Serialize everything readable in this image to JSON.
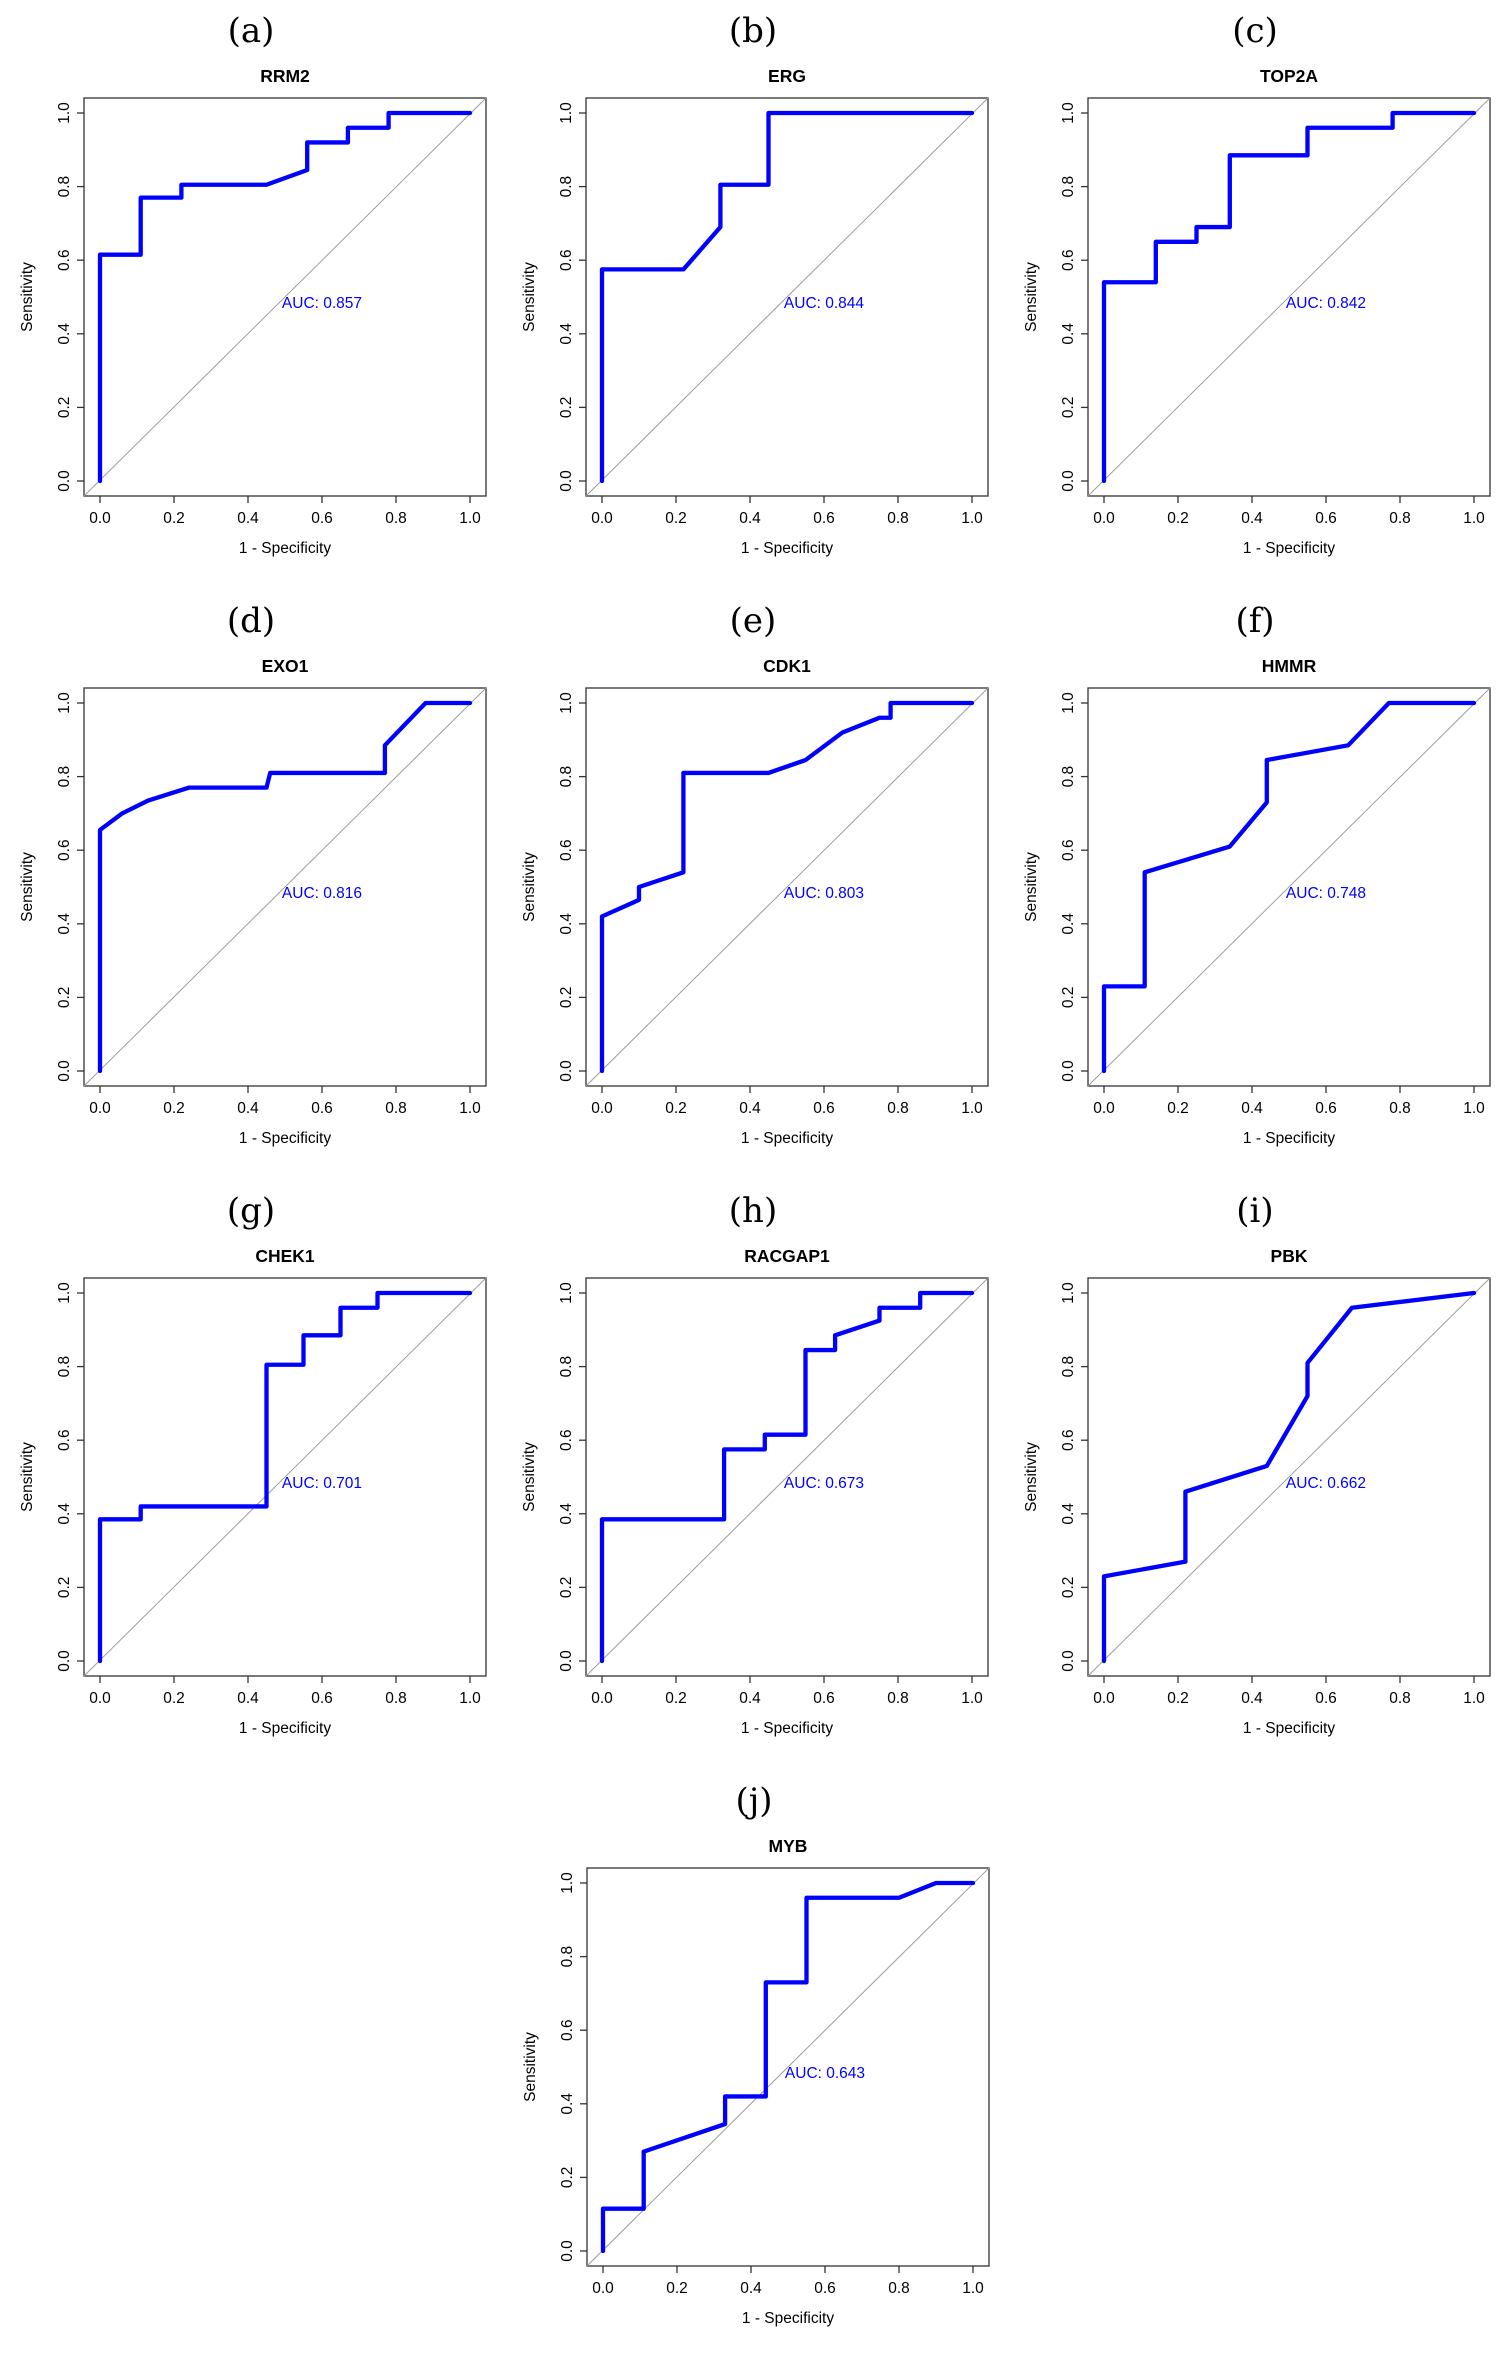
{
  "figure": {
    "background": "#ffffff",
    "axes": {
      "x_label": "1 - Specificity",
      "y_label": "Sensitivity",
      "x_ticks": [
        0.0,
        0.2,
        0.4,
        0.6,
        0.8,
        1.0
      ],
      "y_ticks": [
        0.0,
        0.2,
        0.4,
        0.6,
        0.8,
        1.0
      ],
      "xlim": [
        0,
        1
      ],
      "ylim": [
        0,
        1
      ],
      "grid": "off",
      "box": "full-frame"
    },
    "colors": {
      "roc_curve": "#0000ff",
      "reference_line": "#9e9e9e",
      "auc_text": "#0000ff",
      "axis_box": "#333333",
      "text": "#000000"
    },
    "auc_prefix": "AUC: "
  },
  "chart_data": [
    {
      "type": "line",
      "panel": "a",
      "caption": "(a)",
      "title": "RRM2",
      "row": 1,
      "auc": 0.857,
      "auc_label": "AUC: 0.857",
      "xlabel": "1 - Specificity",
      "ylabel": "Sensitivity",
      "legend": "none",
      "reference_diagonal": true,
      "roc_points": [
        [
          0,
          0
        ],
        [
          0,
          0.615
        ],
        [
          0.11,
          0.615
        ],
        [
          0.11,
          0.77
        ],
        [
          0.22,
          0.77
        ],
        [
          0.22,
          0.805
        ],
        [
          0.45,
          0.805
        ],
        [
          0.56,
          0.845
        ],
        [
          0.56,
          0.92
        ],
        [
          0.67,
          0.92
        ],
        [
          0.67,
          0.96
        ],
        [
          0.78,
          0.96
        ],
        [
          0.78,
          1
        ],
        [
          1,
          1
        ]
      ]
    },
    {
      "type": "line",
      "panel": "b",
      "caption": "(b)",
      "title": "ERG",
      "row": 1,
      "auc": 0.844,
      "auc_label": "AUC: 0.844",
      "xlabel": "1 - Specificity",
      "ylabel": "Sensitivity",
      "legend": "none",
      "reference_diagonal": true,
      "roc_points": [
        [
          0,
          0
        ],
        [
          0,
          0.575
        ],
        [
          0.22,
          0.575
        ],
        [
          0.32,
          0.69
        ],
        [
          0.32,
          0.805
        ],
        [
          0.45,
          0.805
        ],
        [
          0.45,
          1
        ],
        [
          1,
          1
        ]
      ]
    },
    {
      "type": "line",
      "panel": "c",
      "caption": "(c)",
      "title": "TOP2A",
      "row": 1,
      "auc": 0.842,
      "auc_label": "AUC: 0.842",
      "xlabel": "1 - Specificity",
      "ylabel": "Sensitivity",
      "legend": "none",
      "reference_diagonal": true,
      "roc_points": [
        [
          0,
          0
        ],
        [
          0,
          0.54
        ],
        [
          0.14,
          0.54
        ],
        [
          0.14,
          0.65
        ],
        [
          0.25,
          0.65
        ],
        [
          0.25,
          0.69
        ],
        [
          0.34,
          0.69
        ],
        [
          0.34,
          0.885
        ],
        [
          0.55,
          0.885
        ],
        [
          0.55,
          0.96
        ],
        [
          0.78,
          0.96
        ],
        [
          0.78,
          1
        ],
        [
          1,
          1
        ]
      ]
    },
    {
      "type": "line",
      "panel": "d",
      "caption": "(d)",
      "title": "EXO1",
      "row": 2,
      "auc": 0.816,
      "auc_label": "AUC: 0.816",
      "xlabel": "1 - Specificity",
      "ylabel": "Sensitivity",
      "legend": "none",
      "reference_diagonal": true,
      "roc_points": [
        [
          0,
          0
        ],
        [
          0,
          0.655
        ],
        [
          0.06,
          0.7
        ],
        [
          0.13,
          0.735
        ],
        [
          0.24,
          0.77
        ],
        [
          0.45,
          0.77
        ],
        [
          0.46,
          0.81
        ],
        [
          0.77,
          0.81
        ],
        [
          0.77,
          0.885
        ],
        [
          0.88,
          1
        ],
        [
          1,
          1
        ]
      ]
    },
    {
      "type": "line",
      "panel": "e",
      "caption": "(e)",
      "title": "CDK1",
      "row": 2,
      "auc": 0.803,
      "auc_label": "AUC: 0.803",
      "xlabel": "1 - Specificity",
      "ylabel": "Sensitivity",
      "legend": "none",
      "reference_diagonal": true,
      "roc_points": [
        [
          0,
          0
        ],
        [
          0,
          0.42
        ],
        [
          0.1,
          0.465
        ],
        [
          0.1,
          0.5
        ],
        [
          0.22,
          0.54
        ],
        [
          0.22,
          0.81
        ],
        [
          0.45,
          0.81
        ],
        [
          0.55,
          0.845
        ],
        [
          0.65,
          0.92
        ],
        [
          0.75,
          0.96
        ],
        [
          0.78,
          0.96
        ],
        [
          0.78,
          1
        ],
        [
          1,
          1
        ]
      ]
    },
    {
      "type": "line",
      "panel": "f",
      "caption": "(f)",
      "title": "HMMR",
      "row": 2,
      "auc": 0.748,
      "auc_label": "AUC: 0.748",
      "xlabel": "1 - Specificity",
      "ylabel": "Sensitivity",
      "legend": "none",
      "reference_diagonal": true,
      "roc_points": [
        [
          0,
          0
        ],
        [
          0,
          0.23
        ],
        [
          0.11,
          0.23
        ],
        [
          0.11,
          0.54
        ],
        [
          0.34,
          0.61
        ],
        [
          0.44,
          0.73
        ],
        [
          0.44,
          0.845
        ],
        [
          0.66,
          0.885
        ],
        [
          0.77,
          1
        ],
        [
          1,
          1
        ]
      ]
    },
    {
      "type": "line",
      "panel": "g",
      "caption": "(g)",
      "title": "CHEK1",
      "row": 3,
      "auc": 0.701,
      "auc_label": "AUC: 0.701",
      "xlabel": "1 - Specificity",
      "ylabel": "Sensitivity",
      "legend": "none",
      "reference_diagonal": true,
      "roc_points": [
        [
          0,
          0
        ],
        [
          0,
          0.385
        ],
        [
          0.11,
          0.385
        ],
        [
          0.11,
          0.42
        ],
        [
          0.45,
          0.42
        ],
        [
          0.45,
          0.805
        ],
        [
          0.55,
          0.805
        ],
        [
          0.55,
          0.885
        ],
        [
          0.65,
          0.885
        ],
        [
          0.65,
          0.96
        ],
        [
          0.75,
          0.96
        ],
        [
          0.75,
          1
        ],
        [
          1,
          1
        ]
      ]
    },
    {
      "type": "line",
      "panel": "h",
      "caption": "(h)",
      "title": "RACGAP1",
      "row": 3,
      "auc": 0.673,
      "auc_label": "AUC: 0.673",
      "xlabel": "1 - Specificity",
      "ylabel": "Sensitivity",
      "legend": "none",
      "reference_diagonal": true,
      "roc_points": [
        [
          0,
          0
        ],
        [
          0,
          0.385
        ],
        [
          0.33,
          0.385
        ],
        [
          0.33,
          0.575
        ],
        [
          0.44,
          0.575
        ],
        [
          0.44,
          0.615
        ],
        [
          0.55,
          0.615
        ],
        [
          0.55,
          0.845
        ],
        [
          0.63,
          0.845
        ],
        [
          0.63,
          0.885
        ],
        [
          0.75,
          0.925
        ],
        [
          0.75,
          0.96
        ],
        [
          0.86,
          0.96
        ],
        [
          0.86,
          1
        ],
        [
          1,
          1
        ]
      ]
    },
    {
      "type": "line",
      "panel": "i",
      "caption": "(i)",
      "title": "PBK",
      "row": 3,
      "auc": 0.662,
      "auc_label": "AUC: 0.662",
      "xlabel": "1 - Specificity",
      "ylabel": "Sensitivity",
      "legend": "none",
      "reference_diagonal": true,
      "roc_points": [
        [
          0,
          0
        ],
        [
          0,
          0.23
        ],
        [
          0.22,
          0.27
        ],
        [
          0.22,
          0.46
        ],
        [
          0.44,
          0.53
        ],
        [
          0.55,
          0.72
        ],
        [
          0.55,
          0.81
        ],
        [
          0.67,
          0.96
        ],
        [
          1,
          1
        ]
      ]
    },
    {
      "type": "line",
      "panel": "j",
      "caption": "(j)",
      "title": "MYB",
      "row": 4,
      "auc": 0.643,
      "auc_label": "AUC: 0.643",
      "xlabel": "1 - Specificity",
      "ylabel": "Sensitivity",
      "legend": "none",
      "reference_diagonal": true,
      "roc_points": [
        [
          0,
          0
        ],
        [
          0,
          0.115
        ],
        [
          0.11,
          0.115
        ],
        [
          0.11,
          0.27
        ],
        [
          0.33,
          0.345
        ],
        [
          0.33,
          0.42
        ],
        [
          0.44,
          0.42
        ],
        [
          0.44,
          0.73
        ],
        [
          0.55,
          0.73
        ],
        [
          0.55,
          0.96
        ],
        [
          0.8,
          0.96
        ],
        [
          0.9,
          1
        ],
        [
          1,
          1
        ]
      ]
    }
  ]
}
